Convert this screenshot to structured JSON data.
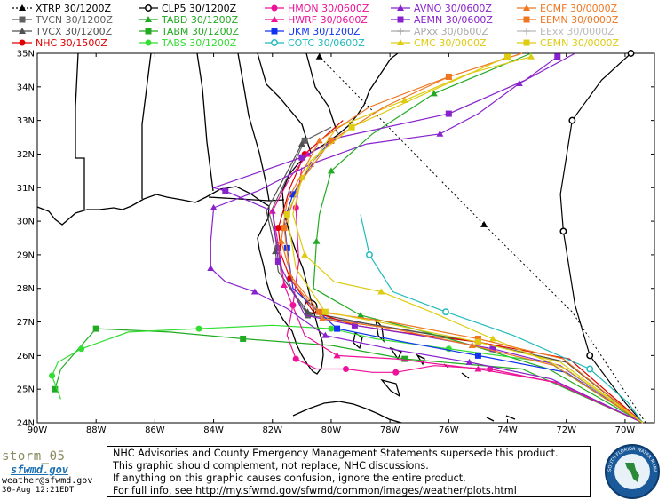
{
  "legend": [
    {
      "label": "XTRP",
      "time": "30/1200Z",
      "color": "#000000",
      "marker": "triangle",
      "col": 0,
      "row": 0,
      "dashed": true
    },
    {
      "label": "TVCN",
      "time": "30/1200Z",
      "color": "#606060",
      "marker": "square",
      "col": 0,
      "row": 1
    },
    {
      "label": "TVCX",
      "time": "30/1200Z",
      "color": "#505050",
      "marker": "triangle",
      "col": 0,
      "row": 2
    },
    {
      "label": "NHC",
      "time": "30/1500Z",
      "color": "#e00000",
      "marker": "circle",
      "col": 0,
      "row": 3
    },
    {
      "label": "CLP5",
      "time": "30/1200Z",
      "color": "#000000",
      "marker": "ring",
      "col": 1,
      "row": 0
    },
    {
      "label": "TABD",
      "time": "30/1200Z",
      "color": "#22aa22",
      "marker": "triangle",
      "col": 1,
      "row": 1
    },
    {
      "label": "TABM",
      "time": "30/1200Z",
      "color": "#22aa22",
      "marker": "square",
      "col": 1,
      "row": 2
    },
    {
      "label": "TABS",
      "time": "30/1200Z",
      "color": "#33dd33",
      "marker": "circle",
      "col": 1,
      "row": 3
    },
    {
      "label": "HMON",
      "time": "30/0600Z",
      "color": "#ee1199",
      "marker": "circle",
      "col": 2,
      "row": 0
    },
    {
      "label": "HWRF",
      "time": "30/0600Z",
      "color": "#ee1199",
      "marker": "triangle",
      "col": 2,
      "row": 1
    },
    {
      "label": "UKM",
      "time": "30/1200Z",
      "color": "#1133ee",
      "marker": "square",
      "col": 2,
      "row": 2
    },
    {
      "label": "COTC",
      "time": "30/0600Z",
      "color": "#22bbbb",
      "marker": "ring",
      "col": 2,
      "row": 3
    },
    {
      "label": "AVNO",
      "time": "30/0600Z",
      "color": "#8822cc",
      "marker": "triangle",
      "col": 3,
      "row": 0
    },
    {
      "label": "AEMN",
      "time": "30/0600Z",
      "color": "#8822cc",
      "marker": "square",
      "col": 3,
      "row": 1
    },
    {
      "label": "APxx",
      "time": "30/0600Z",
      "color": "#aaaaaa",
      "marker": "plus",
      "col": 3,
      "row": 2
    },
    {
      "label": "CMC",
      "time": "30/0000Z",
      "color": "#ddcc11",
      "marker": "triangle",
      "col": 3,
      "row": 3
    },
    {
      "label": "ECMF",
      "time": "30/0000Z",
      "color": "#ee7722",
      "marker": "triangle",
      "col": 4,
      "row": 0
    },
    {
      "label": "EEMN",
      "time": "30/0000Z",
      "color": "#ee7722",
      "marker": "square",
      "col": 4,
      "row": 1
    },
    {
      "label": "EExx",
      "time": "30/0000Z",
      "color": "#bbbbbb",
      "marker": "plus",
      "col": 4,
      "row": 2
    },
    {
      "label": "CEMN",
      "time": "30/0000Z",
      "color": "#ddcc11",
      "marker": "square",
      "col": 4,
      "row": 3
    }
  ],
  "axes": {
    "lat_labels": [
      "35N",
      "34N",
      "33N",
      "32N",
      "31N",
      "30N",
      "29N",
      "28N",
      "27N",
      "26N",
      "25N",
      "24N"
    ],
    "lon_labels": [
      "90W",
      "88W",
      "86W",
      "84W",
      "82W",
      "80W",
      "78W",
      "76W",
      "74W",
      "72W",
      "70W"
    ],
    "lat_range": [
      24,
      35
    ],
    "lon_range": [
      -90,
      -69
    ]
  },
  "tracks": [
    {
      "model": "XTRP",
      "color": "#000000",
      "dashed": true,
      "marker": "triangle",
      "points": [
        [
          -69.3,
          24.0
        ],
        [
          -71.8,
          27.3
        ],
        [
          -74.8,
          29.9
        ],
        [
          -77.6,
          32.4
        ],
        [
          -80.4,
          34.9
        ]
      ]
    },
    {
      "model": "CLP5",
      "color": "#000000",
      "marker": "ring",
      "points": [
        [
          -69.4,
          24.0
        ],
        [
          -70.0,
          24.6
        ],
        [
          -71.2,
          26.0
        ],
        [
          -71.7,
          27.5
        ],
        [
          -72.1,
          29.7
        ],
        [
          -72.2,
          30.8
        ],
        [
          -71.8,
          33.0
        ],
        [
          -70.8,
          34.2
        ],
        [
          -69.8,
          35.0
        ]
      ]
    },
    {
      "model": "TVCN",
      "color": "#606060",
      "marker": "square",
      "points": [
        [
          -69.4,
          24.0
        ],
        [
          -72.0,
          25.8
        ],
        [
          -75.0,
          26.4
        ],
        [
          -78.4,
          26.9
        ],
        [
          -80.8,
          27.2
        ],
        [
          -81.7,
          28.4
        ],
        [
          -81.8,
          29.2
        ],
        [
          -82.1,
          30.2
        ],
        [
          -80.9,
          32.4
        ],
        [
          -80.0,
          32.8
        ]
      ]
    },
    {
      "model": "TVCX",
      "color": "#505050",
      "marker": "triangle",
      "points": [
        [
          -69.4,
          24.0
        ],
        [
          -72.0,
          25.8
        ],
        [
          -75.0,
          26.4
        ],
        [
          -78.5,
          26.9
        ],
        [
          -80.8,
          27.3
        ],
        [
          -81.8,
          28.5
        ],
        [
          -81.9,
          29.1
        ],
        [
          -82.2,
          30.3
        ],
        [
          -81.0,
          32.3
        ]
      ]
    },
    {
      "model": "NHC",
      "color": "#e00000",
      "marker": "circle",
      "points": [
        [
          -69.4,
          24.0
        ],
        [
          -71.9,
          25.9
        ],
        [
          -75.0,
          26.4
        ],
        [
          -77.7,
          26.7
        ],
        [
          -79.2,
          26.9
        ],
        [
          -80.6,
          27.3
        ],
        [
          -81.4,
          28.3
        ],
        [
          -81.7,
          29.0
        ],
        [
          -81.8,
          29.8
        ],
        [
          -81.4,
          31.0
        ],
        [
          -80.9,
          32.0
        ],
        [
          -79.6,
          33.0
        ]
      ]
    },
    {
      "model": "TABD",
      "color": "#22aa22",
      "marker": "triangle",
      "points": [
        [
          -69.4,
          24.0
        ],
        [
          -72.6,
          25.6
        ],
        [
          -75.2,
          26.3
        ],
        [
          -77.2,
          26.8
        ],
        [
          -79.0,
          27.2
        ],
        [
          -80.6,
          28.0
        ],
        [
          -80.5,
          29.4
        ],
        [
          -80.4,
          30.2
        ],
        [
          -80.0,
          31.5
        ],
        [
          -78.6,
          32.6
        ],
        [
          -76.5,
          33.8
        ],
        [
          -73.2,
          35.0
        ]
      ]
    },
    {
      "model": "TABM",
      "color": "#22aa22",
      "marker": "square",
      "points": [
        [
          -69.4,
          24.0
        ],
        [
          -73.5,
          25.6
        ],
        [
          -77.5,
          25.9
        ],
        [
          -80.0,
          26.3
        ],
        [
          -83.0,
          26.5
        ],
        [
          -85.5,
          26.7
        ],
        [
          -88.0,
          26.8
        ],
        [
          -89.2,
          25.6
        ],
        [
          -89.4,
          25.0
        ]
      ]
    },
    {
      "model": "TABS",
      "color": "#33dd33",
      "marker": "circle",
      "points": [
        [
          -69.4,
          24.0
        ],
        [
          -72.6,
          25.8
        ],
        [
          -76.0,
          26.2
        ],
        [
          -78.5,
          26.5
        ],
        [
          -80.0,
          26.8
        ],
        [
          -82.0,
          26.9
        ],
        [
          -84.5,
          26.8
        ],
        [
          -86.9,
          26.7
        ],
        [
          -88.5,
          26.2
        ],
        [
          -89.3,
          25.8
        ],
        [
          -89.5,
          25.4
        ],
        [
          -89.2,
          24.7
        ]
      ]
    },
    {
      "model": "HMON",
      "color": "#ee1199",
      "marker": "circle",
      "points": [
        [
          -69.4,
          24.0
        ],
        [
          -72.4,
          25.2
        ],
        [
          -74.6,
          25.6
        ],
        [
          -76.5,
          25.7
        ],
        [
          -77.8,
          25.5
        ],
        [
          -78.6,
          25.5
        ],
        [
          -79.5,
          25.6
        ],
        [
          -80.5,
          25.6
        ],
        [
          -81.2,
          25.9
        ],
        [
          -81.5,
          26.6
        ],
        [
          -81.3,
          27.5
        ],
        [
          -81.1,
          28.8
        ],
        [
          -81.2,
          30.4
        ],
        [
          -81.0,
          31.6
        ]
      ]
    },
    {
      "model": "HWRF",
      "color": "#ee1199",
      "marker": "triangle",
      "points": [
        [
          -69.4,
          24.0
        ],
        [
          -72.3,
          25.2
        ],
        [
          -75.0,
          25.6
        ],
        [
          -77.8,
          25.9
        ],
        [
          -79.8,
          26.0
        ],
        [
          -80.9,
          26.6
        ],
        [
          -81.6,
          28.1
        ],
        [
          -81.8,
          29.3
        ],
        [
          -82.0,
          30.3
        ],
        [
          -81.4,
          31.3
        ],
        [
          -80.8,
          32.0
        ]
      ]
    },
    {
      "model": "UKM",
      "color": "#1133ee",
      "marker": "square",
      "points": [
        [
          -69.4,
          24.0
        ],
        [
          -72.0,
          25.5
        ],
        [
          -75.0,
          26.0
        ],
        [
          -77.5,
          26.4
        ],
        [
          -79.8,
          26.8
        ],
        [
          -81.3,
          28.0
        ],
        [
          -81.5,
          29.2
        ],
        [
          -81.6,
          30.0
        ],
        [
          -81.3,
          30.8
        ],
        [
          -80.6,
          31.8
        ],
        [
          -80.0,
          32.4
        ]
      ]
    },
    {
      "model": "COTC",
      "color": "#22bbbb",
      "marker": "ring",
      "points": [
        [
          -69.4,
          24.0
        ],
        [
          -69.9,
          24.6
        ],
        [
          -71.2,
          25.6
        ],
        [
          -73.8,
          26.6
        ],
        [
          -76.1,
          27.3
        ],
        [
          -77.9,
          27.9
        ],
        [
          -78.7,
          29.0
        ],
        [
          -79.0,
          30.2
        ]
      ]
    },
    {
      "model": "AVNO",
      "color": "#8822cc",
      "marker": "triangle",
      "points": [
        [
          -69.4,
          24.0
        ],
        [
          -72.5,
          25.3
        ],
        [
          -75.3,
          25.8
        ],
        [
          -78.0,
          26.2
        ],
        [
          -80.2,
          26.6
        ],
        [
          -81.5,
          27.4
        ],
        [
          -82.6,
          27.9
        ],
        [
          -83.6,
          28.2
        ],
        [
          -84.1,
          28.6
        ],
        [
          -84.1,
          29.4
        ],
        [
          -84.0,
          30.4
        ],
        [
          -82.5,
          30.9
        ],
        [
          -80.7,
          31.7
        ],
        [
          -78.8,
          32.3
        ],
        [
          -76.3,
          32.6
        ],
        [
          -75.0,
          33.2
        ],
        [
          -73.6,
          34.1
        ],
        [
          -71.7,
          35.0
        ]
      ]
    },
    {
      "model": "AEMN",
      "color": "#8822cc",
      "marker": "square",
      "points": [
        [
          -69.4,
          24.0
        ],
        [
          -72.2,
          25.7
        ],
        [
          -74.5,
          26.2
        ],
        [
          -77.0,
          26.6
        ],
        [
          -79.2,
          26.9
        ],
        [
          -80.9,
          27.2
        ],
        [
          -81.8,
          28.8
        ],
        [
          -82.0,
          30.3
        ],
        [
          -83.6,
          30.9
        ],
        [
          -84.0,
          31.0
        ],
        [
          -81.0,
          31.9
        ],
        [
          -79.7,
          32.5
        ],
        [
          -76.0,
          33.2
        ],
        [
          -73.4,
          34.2
        ],
        [
          -72.3,
          34.9
        ]
      ]
    },
    {
      "model": "CMC",
      "color": "#ddcc11",
      "marker": "triangle",
      "points": [
        [
          -69.4,
          24.0
        ],
        [
          -72.0,
          25.6
        ],
        [
          -74.5,
          26.5
        ],
        [
          -76.6,
          27.3
        ],
        [
          -78.3,
          27.9
        ],
        [
          -79.9,
          28.2
        ],
        [
          -80.9,
          29.0
        ],
        [
          -81.3,
          30.2
        ],
        [
          -81.0,
          31.3
        ],
        [
          -79.8,
          32.8
        ],
        [
          -77.5,
          33.6
        ],
        [
          -75.3,
          34.4
        ],
        [
          -73.2,
          34.9
        ]
      ]
    },
    {
      "model": "ECMF",
      "color": "#ee7722",
      "marker": "triangle",
      "points": [
        [
          -69.4,
          24.0
        ],
        [
          -72.4,
          25.7
        ],
        [
          -75.2,
          26.3
        ],
        [
          -77.9,
          26.8
        ],
        [
          -80.3,
          27.1
        ],
        [
          -81.3,
          28.2
        ],
        [
          -81.7,
          29.4
        ],
        [
          -81.5,
          30.6
        ],
        [
          -80.4,
          32.4
        ],
        [
          -78.7,
          33.4
        ],
        [
          -76.0,
          34.3
        ],
        [
          -73.5,
          35.0
        ]
      ]
    },
    {
      "model": "EEMN",
      "color": "#ee7722",
      "marker": "square",
      "points": [
        [
          -69.4,
          24.0
        ],
        [
          -72.1,
          25.9
        ],
        [
          -75.0,
          26.5
        ],
        [
          -78.0,
          27.0
        ],
        [
          -80.4,
          27.3
        ],
        [
          -81.4,
          28.4
        ],
        [
          -81.6,
          29.8
        ],
        [
          -81.1,
          31.1
        ],
        [
          -80.0,
          32.4
        ],
        [
          -78.2,
          33.4
        ],
        [
          -76.0,
          34.3
        ]
      ]
    },
    {
      "model": "CEMN",
      "color": "#ddcc11",
      "marker": "square",
      "points": [
        [
          -69.4,
          24.0
        ],
        [
          -72.2,
          25.8
        ],
        [
          -75.0,
          26.4
        ],
        [
          -77.8,
          26.9
        ],
        [
          -80.2,
          27.3
        ],
        [
          -81.2,
          28.6
        ],
        [
          -81.5,
          30.2
        ],
        [
          -80.7,
          31.8
        ],
        [
          -79.3,
          32.8
        ],
        [
          -76.8,
          33.8
        ],
        [
          -74.0,
          34.9
        ]
      ]
    }
  ],
  "notice": {
    "line1": "NHC Advisories and County Emergency Management Statements supersede this product.",
    "line2": "This graphic should complement, not replace, NHC discussions.",
    "line3": "If anything on this graphic causes confusion, ignore the entire product.",
    "line4": "For full info, see   http://my.sfwmd.gov/sfwmd/common/images/weather/plots.html"
  },
  "brand": {
    "storm_name": "storm_05",
    "logo_text": "sfwmd.gov",
    "email": "weather@sfwmd.gov",
    "timestamp": "30-Aug 12:21EDT"
  },
  "seal_text": "SOUTH FLORIDA WATER MANAGEMENT DISTRICT"
}
